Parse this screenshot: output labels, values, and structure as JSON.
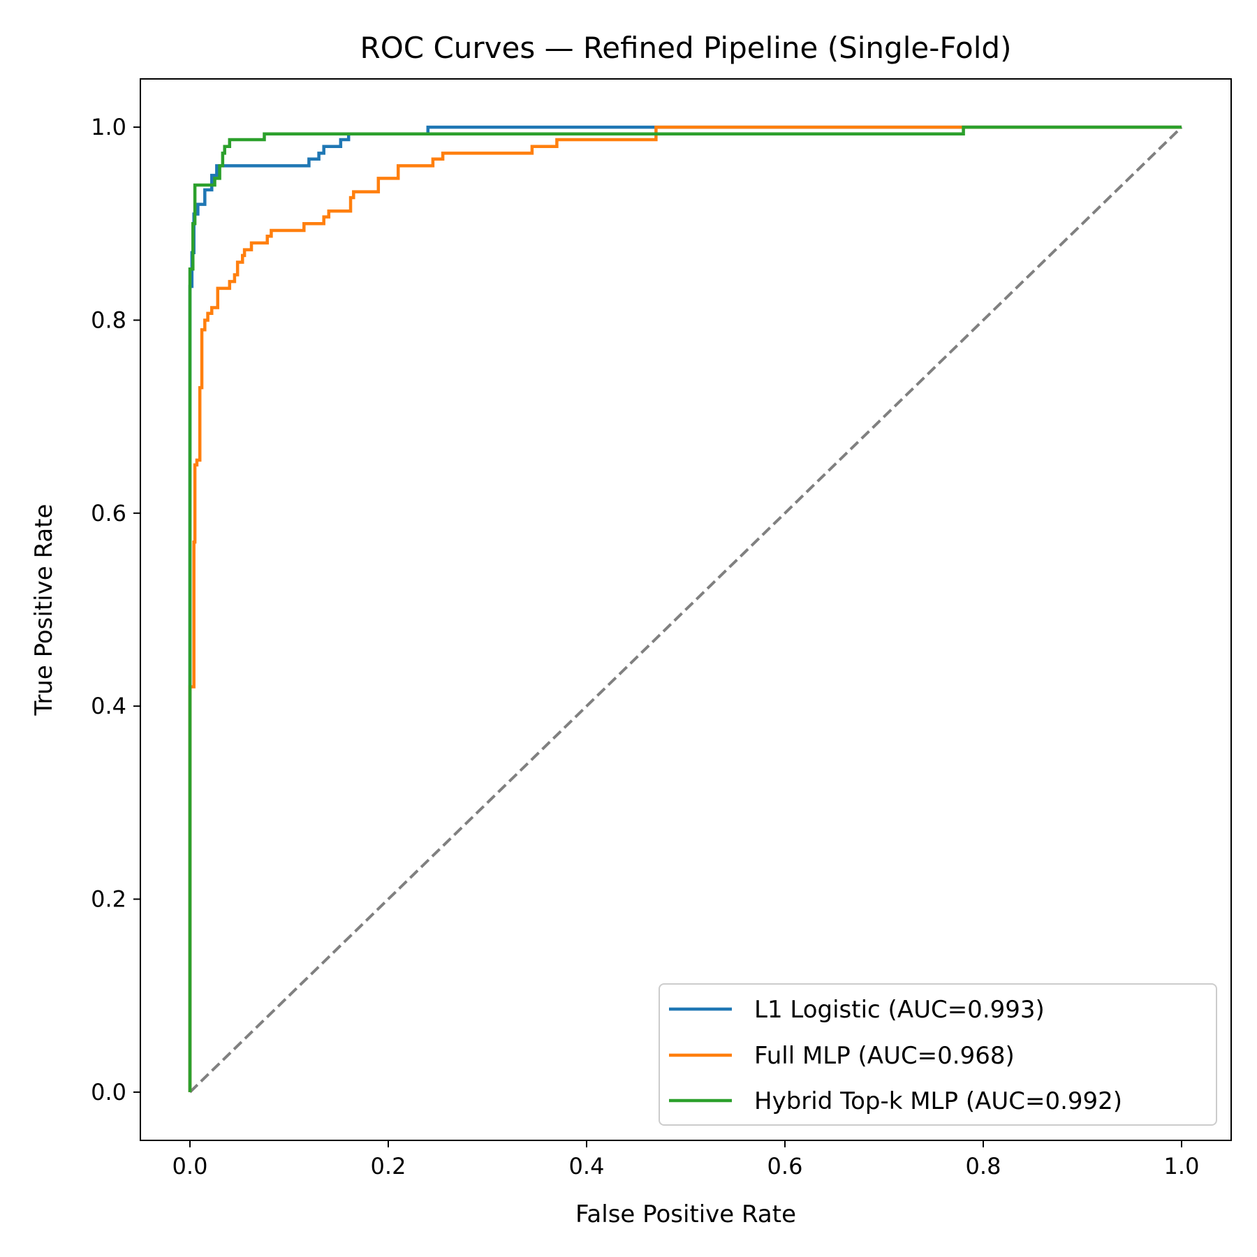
{
  "chart_data": {
    "type": "line",
    "title": "ROC Curves — Refined Pipeline (Single-Fold)",
    "xlabel": "False Positive Rate",
    "ylabel": "True Positive Rate",
    "xlim": [
      -0.05,
      1.05
    ],
    "ylim": [
      -0.05,
      1.05
    ],
    "xticks": [
      0.0,
      0.2,
      0.4,
      0.6,
      0.8,
      1.0
    ],
    "yticks": [
      0.0,
      0.2,
      0.4,
      0.6,
      0.8,
      1.0
    ],
    "xtick_labels": [
      "0.0",
      "0.2",
      "0.4",
      "0.6",
      "0.8",
      "1.0"
    ],
    "ytick_labels": [
      "0.0",
      "0.2",
      "0.4",
      "0.6",
      "0.8",
      "1.0"
    ],
    "grid": false,
    "legend_position": "lower-right",
    "series": [
      {
        "name": "L1 Logistic (AUC=0.993)",
        "color": "#1f77b4",
        "x": [
          0.0,
          0.0,
          0.002,
          0.002,
          0.004,
          0.004,
          0.008,
          0.008,
          0.015,
          0.015,
          0.022,
          0.022,
          0.027,
          0.027,
          0.12,
          0.12,
          0.13,
          0.13,
          0.135,
          0.135,
          0.152,
          0.152,
          0.16,
          0.16,
          0.24,
          0.24,
          0.51,
          0.51,
          1.0
        ],
        "y": [
          0.0,
          0.835,
          0.835,
          0.87,
          0.87,
          0.91,
          0.91,
          0.92,
          0.92,
          0.935,
          0.935,
          0.95,
          0.95,
          0.96,
          0.96,
          0.967,
          0.967,
          0.973,
          0.973,
          0.98,
          0.98,
          0.987,
          0.987,
          0.993,
          0.993,
          1.0,
          1.0,
          1.0,
          1.0
        ]
      },
      {
        "name": "Full MLP (AUC=0.968)",
        "color": "#ff7f0e",
        "x": [
          0.0,
          0.0,
          0.004,
          0.004,
          0.005,
          0.005,
          0.007,
          0.007,
          0.01,
          0.01,
          0.012,
          0.012,
          0.015,
          0.015,
          0.018,
          0.018,
          0.022,
          0.022,
          0.028,
          0.028,
          0.04,
          0.04,
          0.045,
          0.045,
          0.048,
          0.048,
          0.053,
          0.053,
          0.055,
          0.055,
          0.06,
          0.06,
          0.062,
          0.062,
          0.078,
          0.078,
          0.082,
          0.082,
          0.115,
          0.115,
          0.135,
          0.135,
          0.14,
          0.14,
          0.162,
          0.162,
          0.165,
          0.165,
          0.19,
          0.19,
          0.21,
          0.21,
          0.245,
          0.245,
          0.255,
          0.255,
          0.345,
          0.345,
          0.37,
          0.37,
          0.47,
          0.47,
          0.78,
          0.78,
          1.0
        ],
        "y": [
          0.0,
          0.42,
          0.42,
          0.57,
          0.57,
          0.65,
          0.65,
          0.655,
          0.655,
          0.73,
          0.73,
          0.79,
          0.79,
          0.8,
          0.8,
          0.807,
          0.807,
          0.813,
          0.813,
          0.833,
          0.833,
          0.84,
          0.84,
          0.847,
          0.847,
          0.86,
          0.86,
          0.867,
          0.867,
          0.873,
          0.873,
          0.873,
          0.873,
          0.88,
          0.88,
          0.887,
          0.887,
          0.893,
          0.893,
          0.9,
          0.9,
          0.907,
          0.907,
          0.913,
          0.913,
          0.927,
          0.927,
          0.933,
          0.933,
          0.947,
          0.947,
          0.96,
          0.96,
          0.967,
          0.967,
          0.973,
          0.973,
          0.98,
          0.98,
          0.987,
          0.987,
          1.0,
          1.0,
          1.0,
          1.0
        ]
      },
      {
        "name": "Hybrid Top-k MLP (AUC=0.992)",
        "color": "#2ca02c",
        "x": [
          0.0,
          0.0,
          0.003,
          0.003,
          0.005,
          0.005,
          0.025,
          0.025,
          0.03,
          0.03,
          0.033,
          0.033,
          0.035,
          0.035,
          0.04,
          0.04,
          0.075,
          0.075,
          0.78,
          0.78,
          1.0
        ],
        "y": [
          0.0,
          0.853,
          0.853,
          0.9,
          0.9,
          0.94,
          0.94,
          0.947,
          0.947,
          0.96,
          0.96,
          0.973,
          0.973,
          0.98,
          0.98,
          0.987,
          0.987,
          0.993,
          0.993,
          1.0,
          1.0
        ]
      }
    ],
    "reference_line": {
      "x": [
        0.0,
        1.0
      ],
      "y": [
        0.0,
        1.0
      ],
      "color": "#808080",
      "style": "dashed"
    }
  }
}
